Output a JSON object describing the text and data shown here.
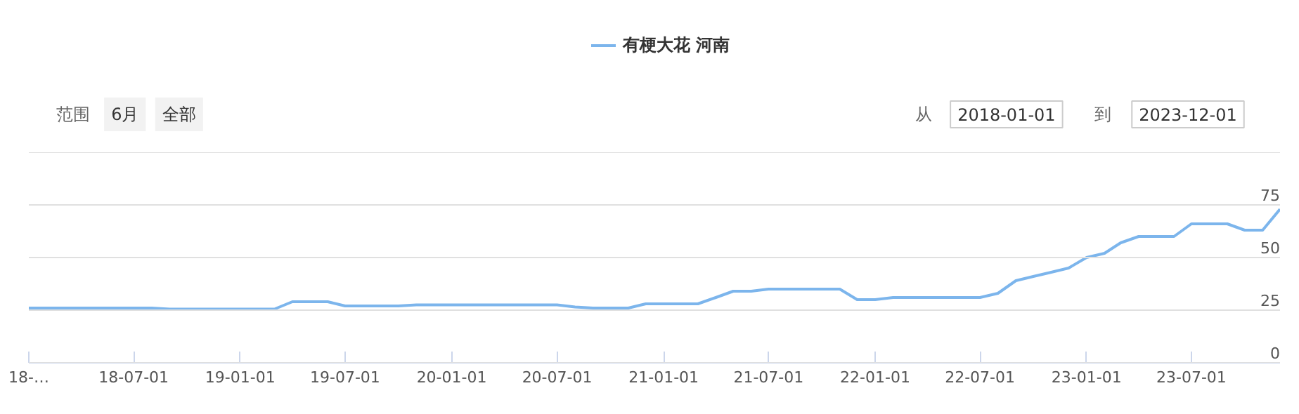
{
  "chart_data": {
    "type": "line",
    "x": [
      "2018-01",
      "2018-02",
      "2018-03",
      "2018-04",
      "2018-05",
      "2018-06",
      "2018-07",
      "2018-08",
      "2018-09",
      "2018-10",
      "2018-11",
      "2018-12",
      "2019-01",
      "2019-02",
      "2019-03",
      "2019-04",
      "2019-05",
      "2019-06",
      "2019-07",
      "2019-08",
      "2019-09",
      "2019-10",
      "2019-11",
      "2019-12",
      "2020-01",
      "2020-02",
      "2020-03",
      "2020-04",
      "2020-05",
      "2020-06",
      "2020-07",
      "2020-08",
      "2020-09",
      "2020-10",
      "2020-11",
      "2020-12",
      "2021-01",
      "2021-02",
      "2021-03",
      "2021-04",
      "2021-05",
      "2021-06",
      "2021-07",
      "2021-08",
      "2021-09",
      "2021-10",
      "2021-11",
      "2021-12",
      "2022-01",
      "2022-02",
      "2022-03",
      "2022-04",
      "2022-05",
      "2022-06",
      "2022-07",
      "2022-08",
      "2022-09",
      "2022-10",
      "2022-11",
      "2022-12",
      "2023-01",
      "2023-02",
      "2023-03",
      "2023-04",
      "2023-05",
      "2023-06",
      "2023-07",
      "2023-08",
      "2023-09",
      "2023-10",
      "2023-11",
      "2023-12"
    ],
    "series": [
      {
        "name": "有梗大花 河南",
        "color": "#7cb5ec",
        "values": [
          26,
          26,
          26,
          26,
          26,
          26,
          26,
          26,
          25.5,
          25.5,
          25.5,
          25.5,
          25.5,
          25.5,
          25.5,
          29,
          29,
          29,
          27,
          27,
          27,
          27,
          27.5,
          27.5,
          27.5,
          27.5,
          27.5,
          27.5,
          27.5,
          27.5,
          27.5,
          26.5,
          26,
          26,
          26,
          28,
          28,
          28,
          28,
          31,
          34,
          34,
          35,
          35,
          35,
          35,
          35,
          30,
          30,
          31,
          31,
          31,
          31,
          31,
          31,
          33,
          39,
          41,
          43,
          45,
          50,
          52,
          57,
          60,
          60,
          60,
          66,
          66,
          66,
          63,
          63,
          73
        ]
      }
    ],
    "xlim": [
      "2018-01-01",
      "2023-12-01"
    ],
    "xticks": [
      {
        "value": "2018-01-01",
        "label": "18-…"
      },
      {
        "value": "2018-07-01",
        "label": "18-07-01"
      },
      {
        "value": "2019-01-01",
        "label": "19-01-01"
      },
      {
        "value": "2019-07-01",
        "label": "19-07-01"
      },
      {
        "value": "2020-01-01",
        "label": "20-01-01"
      },
      {
        "value": "2020-07-01",
        "label": "20-07-01"
      },
      {
        "value": "2021-01-01",
        "label": "21-01-01"
      },
      {
        "value": "2021-07-01",
        "label": "21-07-01"
      },
      {
        "value": "2022-01-01",
        "label": "22-01-01"
      },
      {
        "value": "2022-07-01",
        "label": "22-07-01"
      },
      {
        "value": "2023-01-01",
        "label": "23-01-01"
      },
      {
        "value": "2023-07-01",
        "label": "23-07-01"
      }
    ],
    "ylim": [
      0,
      100
    ],
    "yticks": [
      0,
      25,
      50,
      75,
      {
        "value": 100,
        "label": null
      }
    ],
    "grid": "y",
    "legend": "top",
    "marker": "none",
    "line_style": "solid",
    "annotations": [
      "范围",
      "6月",
      "全部",
      "从",
      "2018-01-01",
      "到",
      "2023-12-01"
    ]
  }
}
